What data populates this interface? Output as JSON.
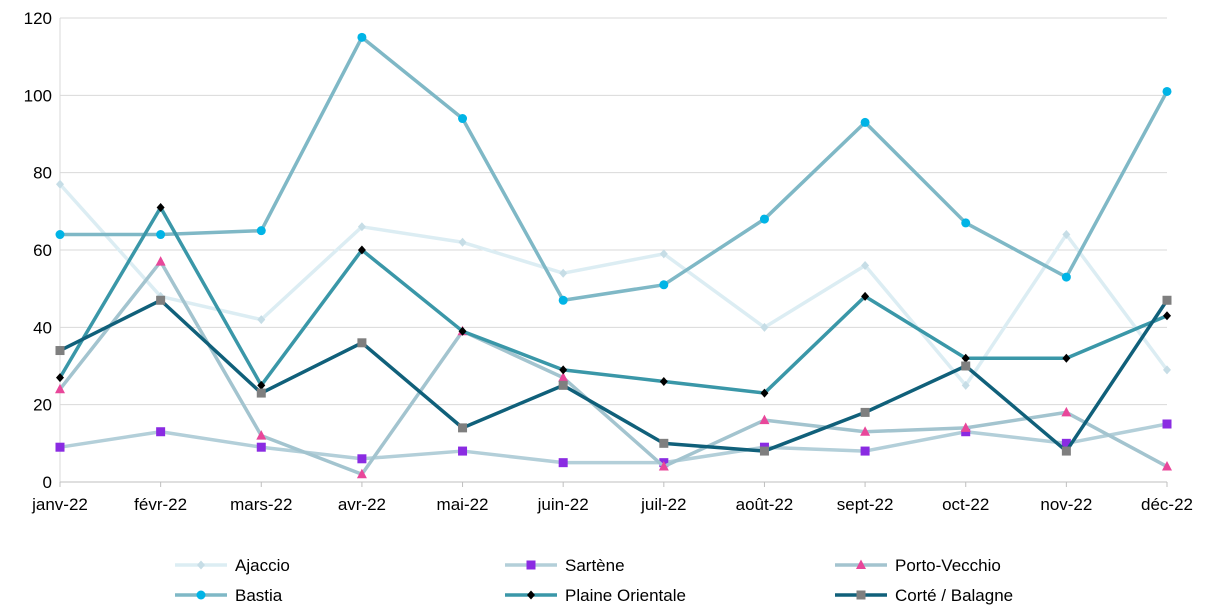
{
  "chart_data": {
    "type": "line",
    "categories": [
      "janv-22",
      "févr-22",
      "mars-22",
      "avr-22",
      "mai-22",
      "juin-22",
      "juil-22",
      "août-22",
      "sept-22",
      "oct-22",
      "nov-22",
      "déc-22"
    ],
    "ylim": [
      0,
      120
    ],
    "yticks": [
      0,
      20,
      40,
      60,
      80,
      100,
      120
    ],
    "grid": "horizontal",
    "legend_position": "bottom",
    "title": "",
    "xlabel": "",
    "ylabel": "",
    "series": [
      {
        "name": "Ajaccio",
        "color": "#dcedf3",
        "marker": "diamond",
        "marker_color": "#c6dde6",
        "values": [
          77,
          48,
          42,
          66,
          62,
          54,
          59,
          40,
          56,
          25,
          64,
          29
        ]
      },
      {
        "name": "Sartène",
        "color": "#b3cfd9",
        "marker": "square",
        "marker_color": "#8a2be2",
        "values": [
          9,
          13,
          9,
          6,
          8,
          5,
          5,
          9,
          8,
          13,
          10,
          15
        ]
      },
      {
        "name": "Porto-Vecchio",
        "color": "#a3c4cf",
        "marker": "triangle",
        "marker_color": "#e8479a",
        "values": [
          24,
          57,
          12,
          2,
          39,
          27,
          4,
          16,
          13,
          14,
          18,
          4
        ]
      },
      {
        "name": "Bastia",
        "color": "#7fb8c6",
        "marker": "circle",
        "marker_color": "#00b4e6",
        "values": [
          64,
          64,
          65,
          115,
          94,
          47,
          51,
          68,
          93,
          67,
          53,
          101
        ]
      },
      {
        "name": "Plaine Orientale",
        "color": "#3a97a8",
        "marker": "diamond",
        "marker_color": "#000000",
        "values": [
          27,
          71,
          25,
          60,
          39,
          29,
          26,
          23,
          48,
          32,
          32,
          43
        ]
      },
      {
        "name": "Corté / Balagne",
        "color": "#10607a",
        "marker": "square",
        "marker_color": "#7f7f7f",
        "values": [
          34,
          47,
          23,
          36,
          14,
          25,
          10,
          8,
          18,
          30,
          8,
          47
        ]
      }
    ]
  }
}
